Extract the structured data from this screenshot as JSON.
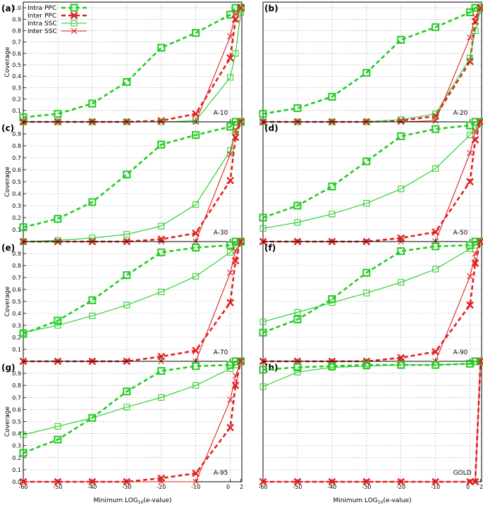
{
  "figure": {
    "xlabel_prefix": "Minimum LOG",
    "xlabel_sub": "10",
    "xlabel_suffix": "(e-value)",
    "ylabel": "Coverage"
  },
  "legend": [
    {
      "label": "Intra PPC",
      "color": "#22cc22",
      "style": "dashed",
      "marker": "square"
    },
    {
      "label": "Inter PPC",
      "color": "#e02020",
      "style": "dashed",
      "marker": "x"
    },
    {
      "label": "Intra SSC",
      "color": "#22cc22",
      "style": "solid",
      "marker": "square"
    },
    {
      "label": "Inter SSC",
      "color": "#e02020",
      "style": "solid",
      "marker": "x"
    }
  ],
  "colors": {
    "intra": "#22cc22",
    "inter": "#e02020"
  },
  "chart_data": [
    {
      "type": "line",
      "panel": "(a)",
      "name": "A-10",
      "x": [
        -60,
        -50,
        -40,
        -30,
        -20,
        -10,
        0,
        1,
        2
      ],
      "xticks": [
        "-60",
        "-50",
        "-40",
        "-30",
        "-20",
        "-10",
        "0",
        "2"
      ],
      "ylim": [
        0,
        1.05
      ],
      "yticks": [
        "0.1",
        "0.2",
        "0.3",
        "0.4",
        "0.5",
        "0.6",
        "0.7",
        "0.8",
        "0.9",
        "1.0"
      ],
      "series": [
        {
          "name": "Intra PPC",
          "values": [
            0.04,
            0.07,
            0.16,
            0.35,
            0.65,
            0.78,
            0.94,
            1.0,
            1.0
          ]
        },
        {
          "name": "Inter PPC",
          "values": [
            0.0,
            0.0,
            0.0,
            0.0,
            0.01,
            0.07,
            0.56,
            0.9,
            1.0
          ]
        },
        {
          "name": "Intra SSC",
          "values": [
            0.0,
            0.0,
            0.0,
            0.0,
            0.0,
            0.01,
            0.39,
            0.6,
            0.96
          ]
        },
        {
          "name": "Inter SSC",
          "values": [
            0.0,
            0.0,
            0.0,
            0.0,
            0.0,
            0.0,
            0.75,
            0.95,
            1.0
          ]
        }
      ]
    },
    {
      "type": "line",
      "panel": "(b)",
      "name": "A-20",
      "x": [
        -60,
        -50,
        -40,
        -30,
        -20,
        -10,
        0,
        1,
        2
      ],
      "xticks": [
        "-60",
        "-50",
        "-40",
        "-30",
        "-20",
        "-10",
        "0",
        "2"
      ],
      "ylim": [
        0,
        1.05
      ],
      "yticks": [
        "0.1",
        "0.2",
        "0.3",
        "0.4",
        "0.5",
        "0.6",
        "0.7",
        "0.8",
        "0.9",
        "1.0"
      ],
      "series": [
        {
          "name": "Intra PPC",
          "values": [
            0.07,
            0.12,
            0.22,
            0.43,
            0.72,
            0.83,
            0.96,
            1.0,
            1.0
          ]
        },
        {
          "name": "Inter PPC",
          "values": [
            0.0,
            0.0,
            0.0,
            0.0,
            0.01,
            0.05,
            0.53,
            0.88,
            1.0
          ]
        },
        {
          "name": "Intra SSC",
          "values": [
            0.0,
            0.0,
            0.0,
            0.0,
            0.02,
            0.07,
            0.56,
            0.8,
            0.98
          ]
        },
        {
          "name": "Inter SSC",
          "values": [
            0.0,
            0.0,
            0.0,
            0.0,
            0.0,
            0.01,
            0.74,
            0.92,
            1.0
          ]
        }
      ]
    },
    {
      "type": "line",
      "panel": "(c)",
      "name": "A-30",
      "x": [
        -60,
        -50,
        -40,
        -30,
        -20,
        -10,
        0,
        1,
        2
      ],
      "xticks": [
        "-60",
        "-50",
        "-40",
        "-30",
        "-20",
        "-10",
        "0",
        "2"
      ],
      "ylim": [
        0,
        1.0
      ],
      "yticks": [
        "0.1",
        "0.2",
        "0.3",
        "0.4",
        "0.5",
        "0.6",
        "0.7",
        "0.8",
        "0.9"
      ],
      "series": [
        {
          "name": "Intra PPC",
          "values": [
            0.12,
            0.19,
            0.33,
            0.56,
            0.81,
            0.89,
            0.96,
            1.0,
            1.0
          ]
        },
        {
          "name": "Inter PPC",
          "values": [
            0.0,
            0.0,
            0.0,
            0.0,
            0.02,
            0.07,
            0.51,
            0.87,
            1.0
          ]
        },
        {
          "name": "Intra SSC",
          "values": [
            0.0,
            0.01,
            0.03,
            0.06,
            0.13,
            0.31,
            0.76,
            0.92,
            1.0
          ]
        },
        {
          "name": "Inter SSC",
          "values": [
            0.0,
            0.0,
            0.0,
            0.0,
            0.0,
            0.0,
            0.73,
            0.93,
            1.0
          ]
        }
      ]
    },
    {
      "type": "line",
      "panel": "(d)",
      "name": "A-50",
      "x": [
        -60,
        -50,
        -40,
        -30,
        -20,
        -10,
        0,
        1,
        2
      ],
      "xticks": [
        "-60",
        "-50",
        "-40",
        "-30",
        "-20",
        "-10",
        "0",
        "2"
      ],
      "ylim": [
        0,
        1.0
      ],
      "yticks": [
        "0.1",
        "0.2",
        "0.3",
        "0.4",
        "0.5",
        "0.6",
        "0.7",
        "0.8",
        "0.9"
      ],
      "series": [
        {
          "name": "Intra PPC",
          "values": [
            0.2,
            0.3,
            0.46,
            0.67,
            0.88,
            0.94,
            0.97,
            1.0,
            1.0
          ]
        },
        {
          "name": "Inter PPC",
          "values": [
            0.0,
            0.0,
            0.0,
            0.0,
            0.03,
            0.08,
            0.5,
            0.85,
            1.0
          ]
        },
        {
          "name": "Intra SSC",
          "values": [
            0.11,
            0.16,
            0.23,
            0.32,
            0.44,
            0.61,
            0.89,
            0.95,
            1.0
          ]
        },
        {
          "name": "Inter SSC",
          "values": [
            0.0,
            0.0,
            0.0,
            0.0,
            0.0,
            0.0,
            0.74,
            0.92,
            1.0
          ]
        }
      ]
    },
    {
      "type": "line",
      "panel": "(e)",
      "name": "A-70",
      "x": [
        -60,
        -50,
        -40,
        -30,
        -20,
        -10,
        0,
        1,
        2
      ],
      "xticks": [
        "-60",
        "-50",
        "-40",
        "-30",
        "-20",
        "-10",
        "0",
        "2"
      ],
      "ylim": [
        0,
        1.0
      ],
      "yticks": [
        "0.1",
        "0.2",
        "0.3",
        "0.4",
        "0.5",
        "0.6",
        "0.7",
        "0.8",
        "0.9"
      ],
      "series": [
        {
          "name": "Intra PPC",
          "values": [
            0.23,
            0.34,
            0.51,
            0.72,
            0.91,
            0.95,
            0.97,
            1.0,
            1.0
          ]
        },
        {
          "name": "Inter PPC",
          "values": [
            0.0,
            0.0,
            0.0,
            0.0,
            0.04,
            0.09,
            0.49,
            0.84,
            1.0
          ]
        },
        {
          "name": "Intra SSC",
          "values": [
            0.24,
            0.3,
            0.38,
            0.47,
            0.58,
            0.71,
            0.91,
            0.96,
            1.0
          ]
        },
        {
          "name": "Inter SSC",
          "values": [
            0.0,
            0.0,
            0.0,
            0.0,
            0.0,
            0.0,
            0.74,
            0.92,
            1.0
          ]
        }
      ]
    },
    {
      "type": "line",
      "panel": "(f)",
      "name": "A-90",
      "x": [
        -60,
        -50,
        -40,
        -30,
        -20,
        -10,
        0,
        1,
        2
      ],
      "xticks": [
        "-60",
        "-50",
        "-40",
        "-30",
        "-20",
        "-10",
        "0",
        "2"
      ],
      "ylim": [
        0,
        1.0
      ],
      "yticks": [
        "0.1",
        "0.2",
        "0.3",
        "0.4",
        "0.5",
        "0.6",
        "0.7",
        "0.8",
        "0.9"
      ],
      "series": [
        {
          "name": "Intra PPC",
          "values": [
            0.24,
            0.35,
            0.52,
            0.74,
            0.92,
            0.96,
            0.97,
            1.0,
            1.0
          ]
        },
        {
          "name": "Inter PPC",
          "values": [
            0.0,
            0.0,
            0.0,
            0.0,
            0.03,
            0.08,
            0.47,
            0.82,
            1.0
          ]
        },
        {
          "name": "Intra SSC",
          "values": [
            0.33,
            0.41,
            0.49,
            0.57,
            0.66,
            0.77,
            0.94,
            0.97,
            1.0
          ]
        },
        {
          "name": "Inter SSC",
          "values": [
            0.0,
            0.0,
            0.0,
            0.0,
            0.0,
            0.0,
            0.71,
            0.9,
            1.0
          ]
        }
      ]
    },
    {
      "type": "line",
      "panel": "(g)",
      "name": "A-95",
      "x": [
        -60,
        -50,
        -40,
        -30,
        -20,
        -10,
        0,
        1,
        2
      ],
      "xticks": [
        "-60",
        "-50",
        "-40",
        "-30",
        "-20",
        "-10",
        "0",
        "2"
      ],
      "ylim": [
        0,
        1.0
      ],
      "yticks": [
        "0.0",
        "0.1",
        "0.2",
        "0.3",
        "0.4",
        "0.5",
        "0.6",
        "0.7",
        "0.8",
        "0.9"
      ],
      "series": [
        {
          "name": "Intra PPC",
          "values": [
            0.24,
            0.35,
            0.53,
            0.75,
            0.92,
            0.96,
            0.97,
            1.0,
            1.0
          ]
        },
        {
          "name": "Inter PPC",
          "values": [
            0.0,
            0.0,
            0.0,
            0.0,
            0.03,
            0.07,
            0.45,
            0.8,
            1.0
          ]
        },
        {
          "name": "Intra SSC",
          "values": [
            0.39,
            0.46,
            0.53,
            0.62,
            0.7,
            0.8,
            0.94,
            0.97,
            1.0
          ]
        },
        {
          "name": "Inter SSC",
          "values": [
            0.0,
            0.0,
            0.0,
            0.0,
            0.0,
            0.0,
            0.68,
            0.88,
            1.0
          ]
        }
      ]
    },
    {
      "type": "line",
      "panel": "(h)",
      "name": "GOLD",
      "x": [
        -60,
        -50,
        -40,
        -30,
        -20,
        -10,
        0,
        1,
        2
      ],
      "xticks": [
        "-60",
        "-50",
        "-40",
        "-30",
        "-20",
        "-10",
        "0",
        "2"
      ],
      "ylim": [
        0,
        1.0
      ],
      "yticks": [],
      "series": [
        {
          "name": "Intra PPC",
          "values": [
            0.93,
            0.95,
            0.96,
            0.97,
            0.97,
            0.97,
            0.98,
            1.0,
            1.0
          ]
        },
        {
          "name": "Inter PPC",
          "values": [
            0.0,
            0.0,
            0.0,
            0.0,
            0.0,
            0.0,
            0.0,
            0.0,
            1.0
          ]
        },
        {
          "name": "Intra SSC",
          "values": [
            0.79,
            0.91,
            0.95,
            0.96,
            0.97,
            0.97,
            0.98,
            1.0,
            1.0
          ]
        },
        {
          "name": "Inter SSC",
          "values": [
            0.0,
            0.0,
            0.0,
            0.0,
            0.0,
            0.0,
            0.0,
            0.0,
            1.0
          ]
        }
      ]
    }
  ]
}
